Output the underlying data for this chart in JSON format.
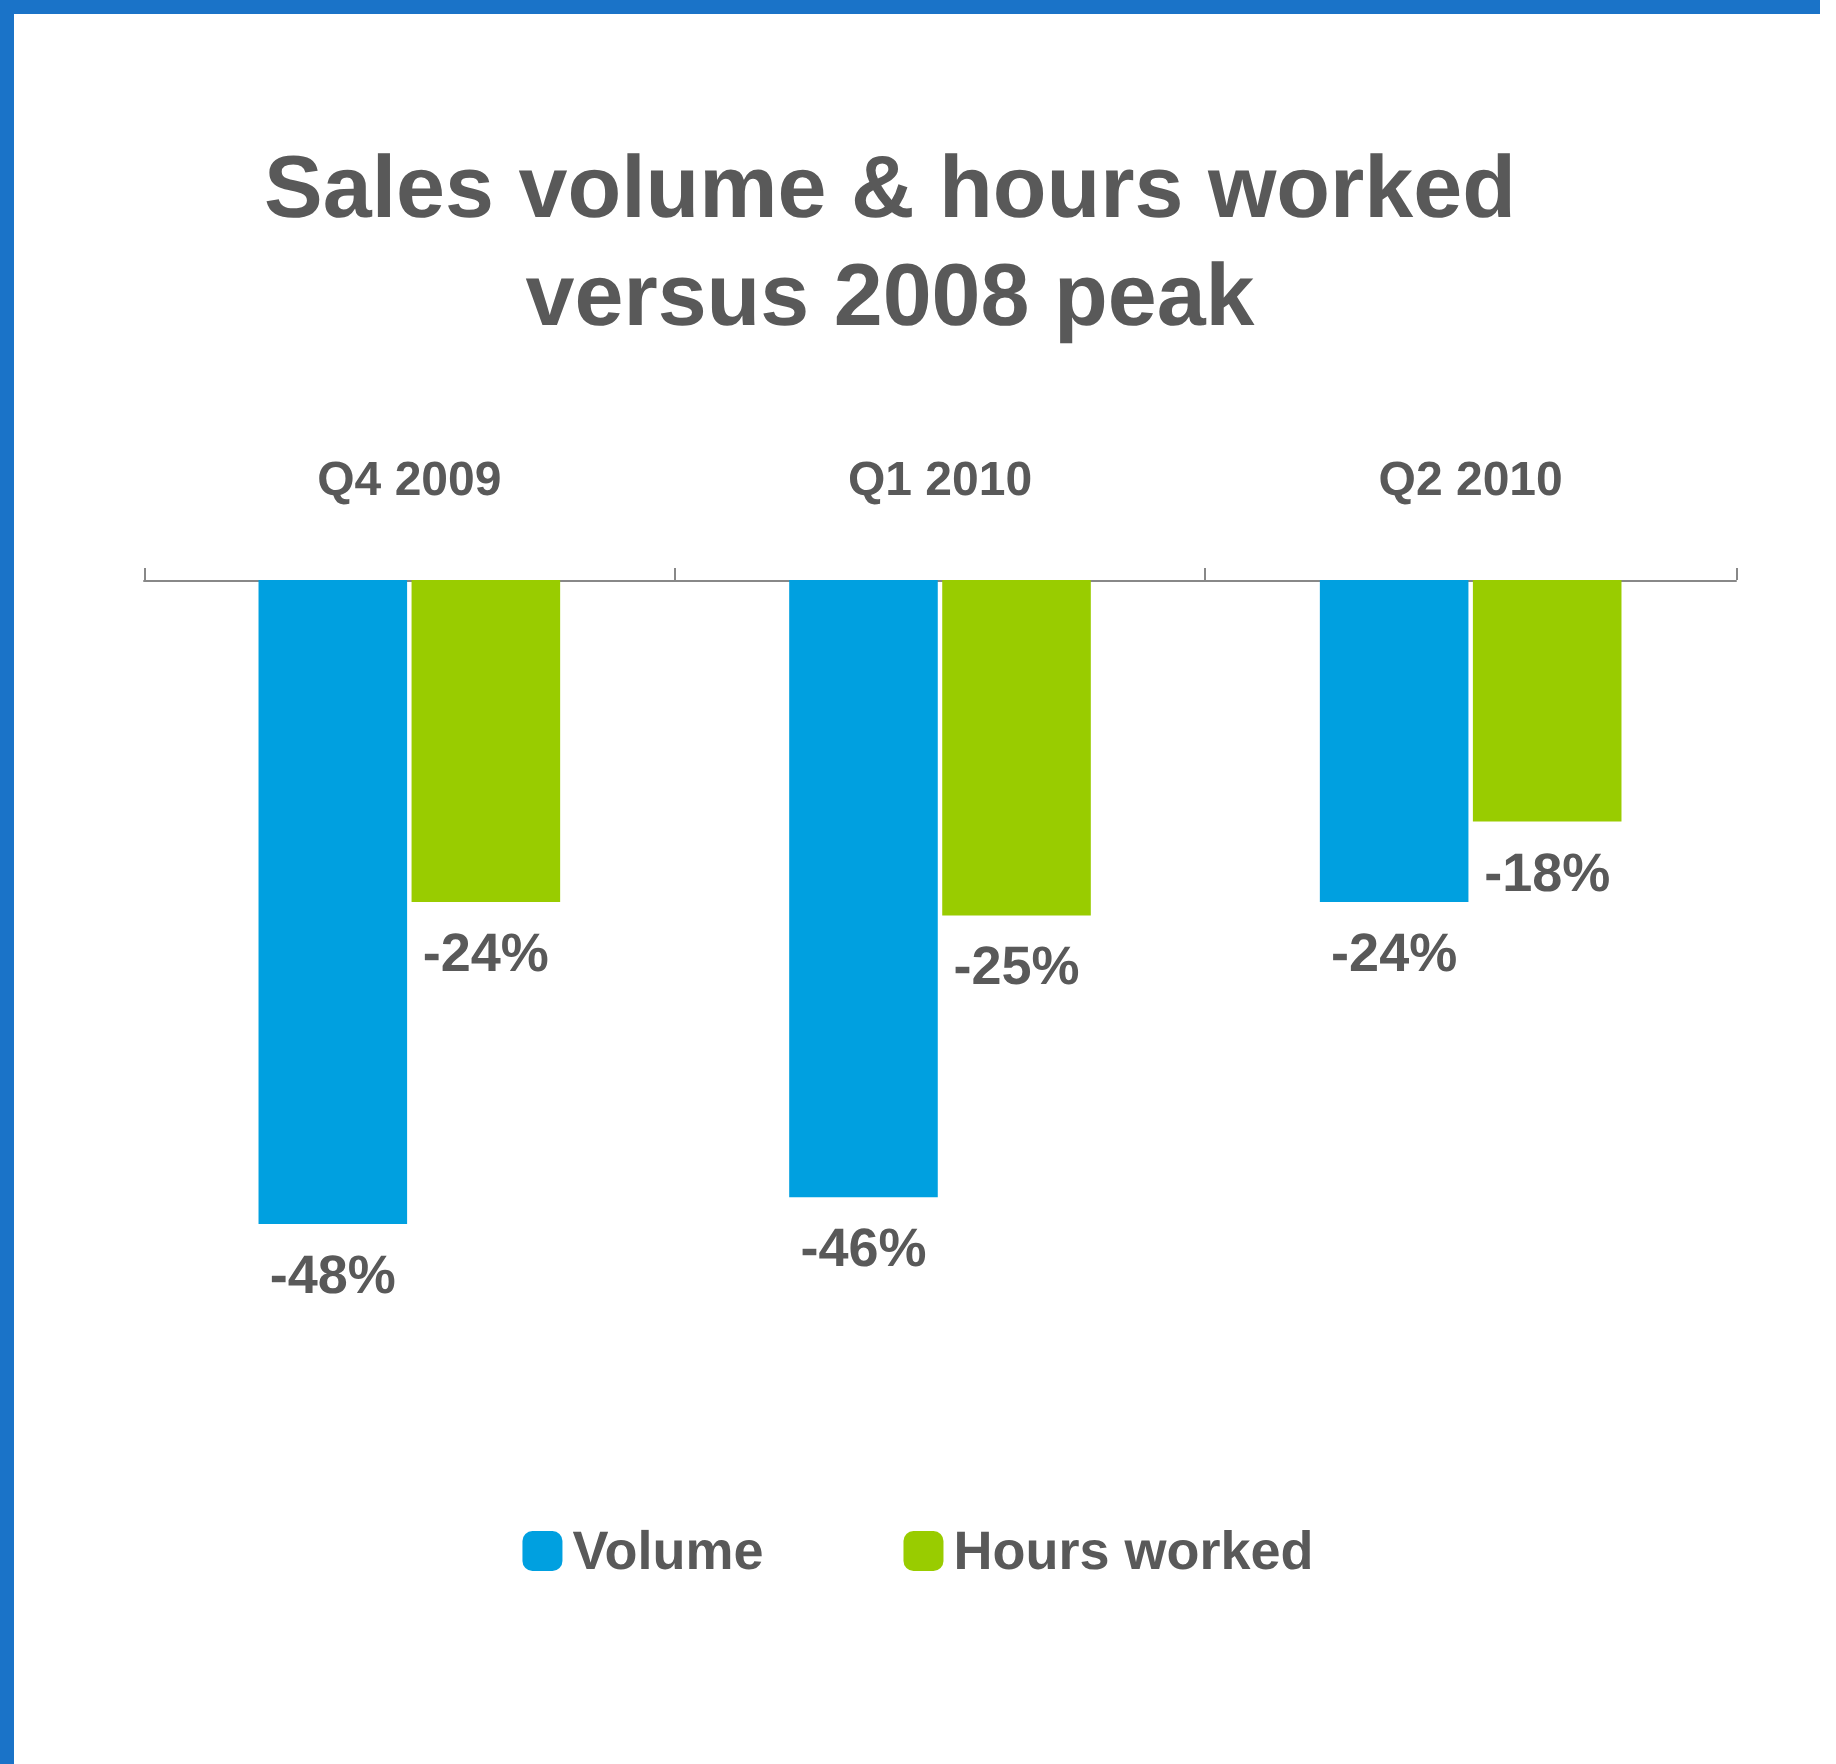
{
  "chart_data": {
    "type": "bar",
    "title": "Sales volume & hours worked\nversus 2008 peak",
    "categories": [
      "Q4 2009",
      "Q1 2010",
      "Q2 2010"
    ],
    "series": [
      {
        "name": "Volume",
        "color": "#00a0e0",
        "values": [
          -48,
          -46,
          -24
        ],
        "value_labels": [
          "-48%",
          "-46%",
          "-24%"
        ]
      },
      {
        "name": "Hours worked",
        "color": "#99cc00",
        "values": [
          -24,
          -25,
          -18
        ],
        "value_labels": [
          "-24%",
          "-25%",
          "-18%"
        ]
      }
    ],
    "legend": "bottom"
  }
}
